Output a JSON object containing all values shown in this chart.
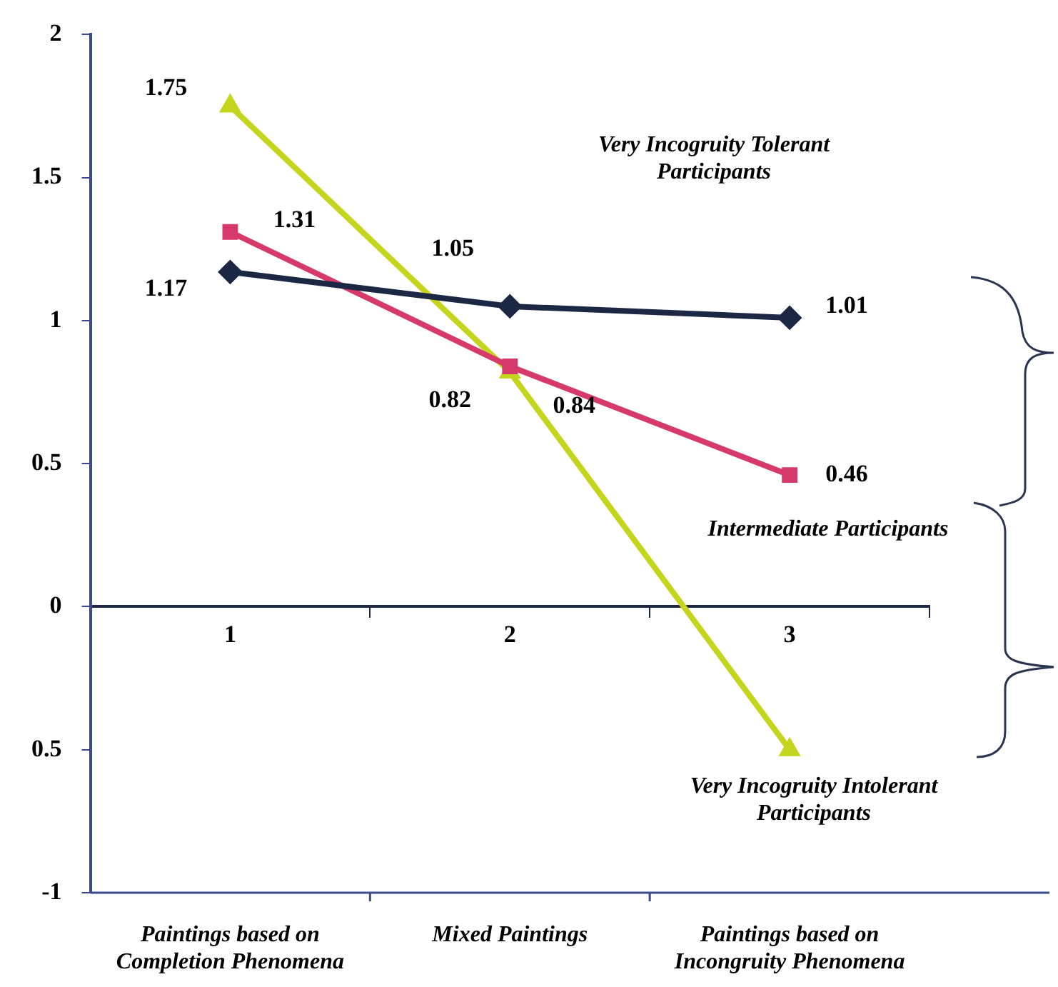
{
  "chart_data": {
    "type": "line",
    "categories": [
      "1",
      "2",
      "3"
    ],
    "series": [
      {
        "color": "#1c2744",
        "marker": "diamond",
        "values": [
          1.17,
          1.05,
          1.01
        ],
        "value_labels": [
          "1.17",
          "1.05",
          "1.01"
        ]
      },
      {
        "color": "#d63a6a",
        "marker": "square",
        "values": [
          1.31,
          0.84,
          0.46
        ],
        "value_labels": [
          "1.31",
          "0.84",
          "0.46"
        ]
      },
      {
        "color": "#c5d51e",
        "marker": "triangle",
        "values": [
          1.75,
          0.82,
          -0.5
        ],
        "value_labels": [
          "1.75",
          "0.82",
          null
        ]
      }
    ],
    "ylim": [
      -1,
      2
    ],
    "yticks": [
      -1,
      {
        "value": -0.5,
        "label": "0.5"
      },
      0,
      0.5,
      1,
      1.5,
      2
    ],
    "grid": false,
    "legend": false,
    "annotations": [
      "Very Incogruity Tolerant Participants",
      "Intermediate Participants",
      "Very Incogruity Intolerant Participants",
      "Paintings based on Completion Phenomena",
      "Mixed Paintings",
      "Paintings based on Incongruity Phenomena"
    ]
  }
}
